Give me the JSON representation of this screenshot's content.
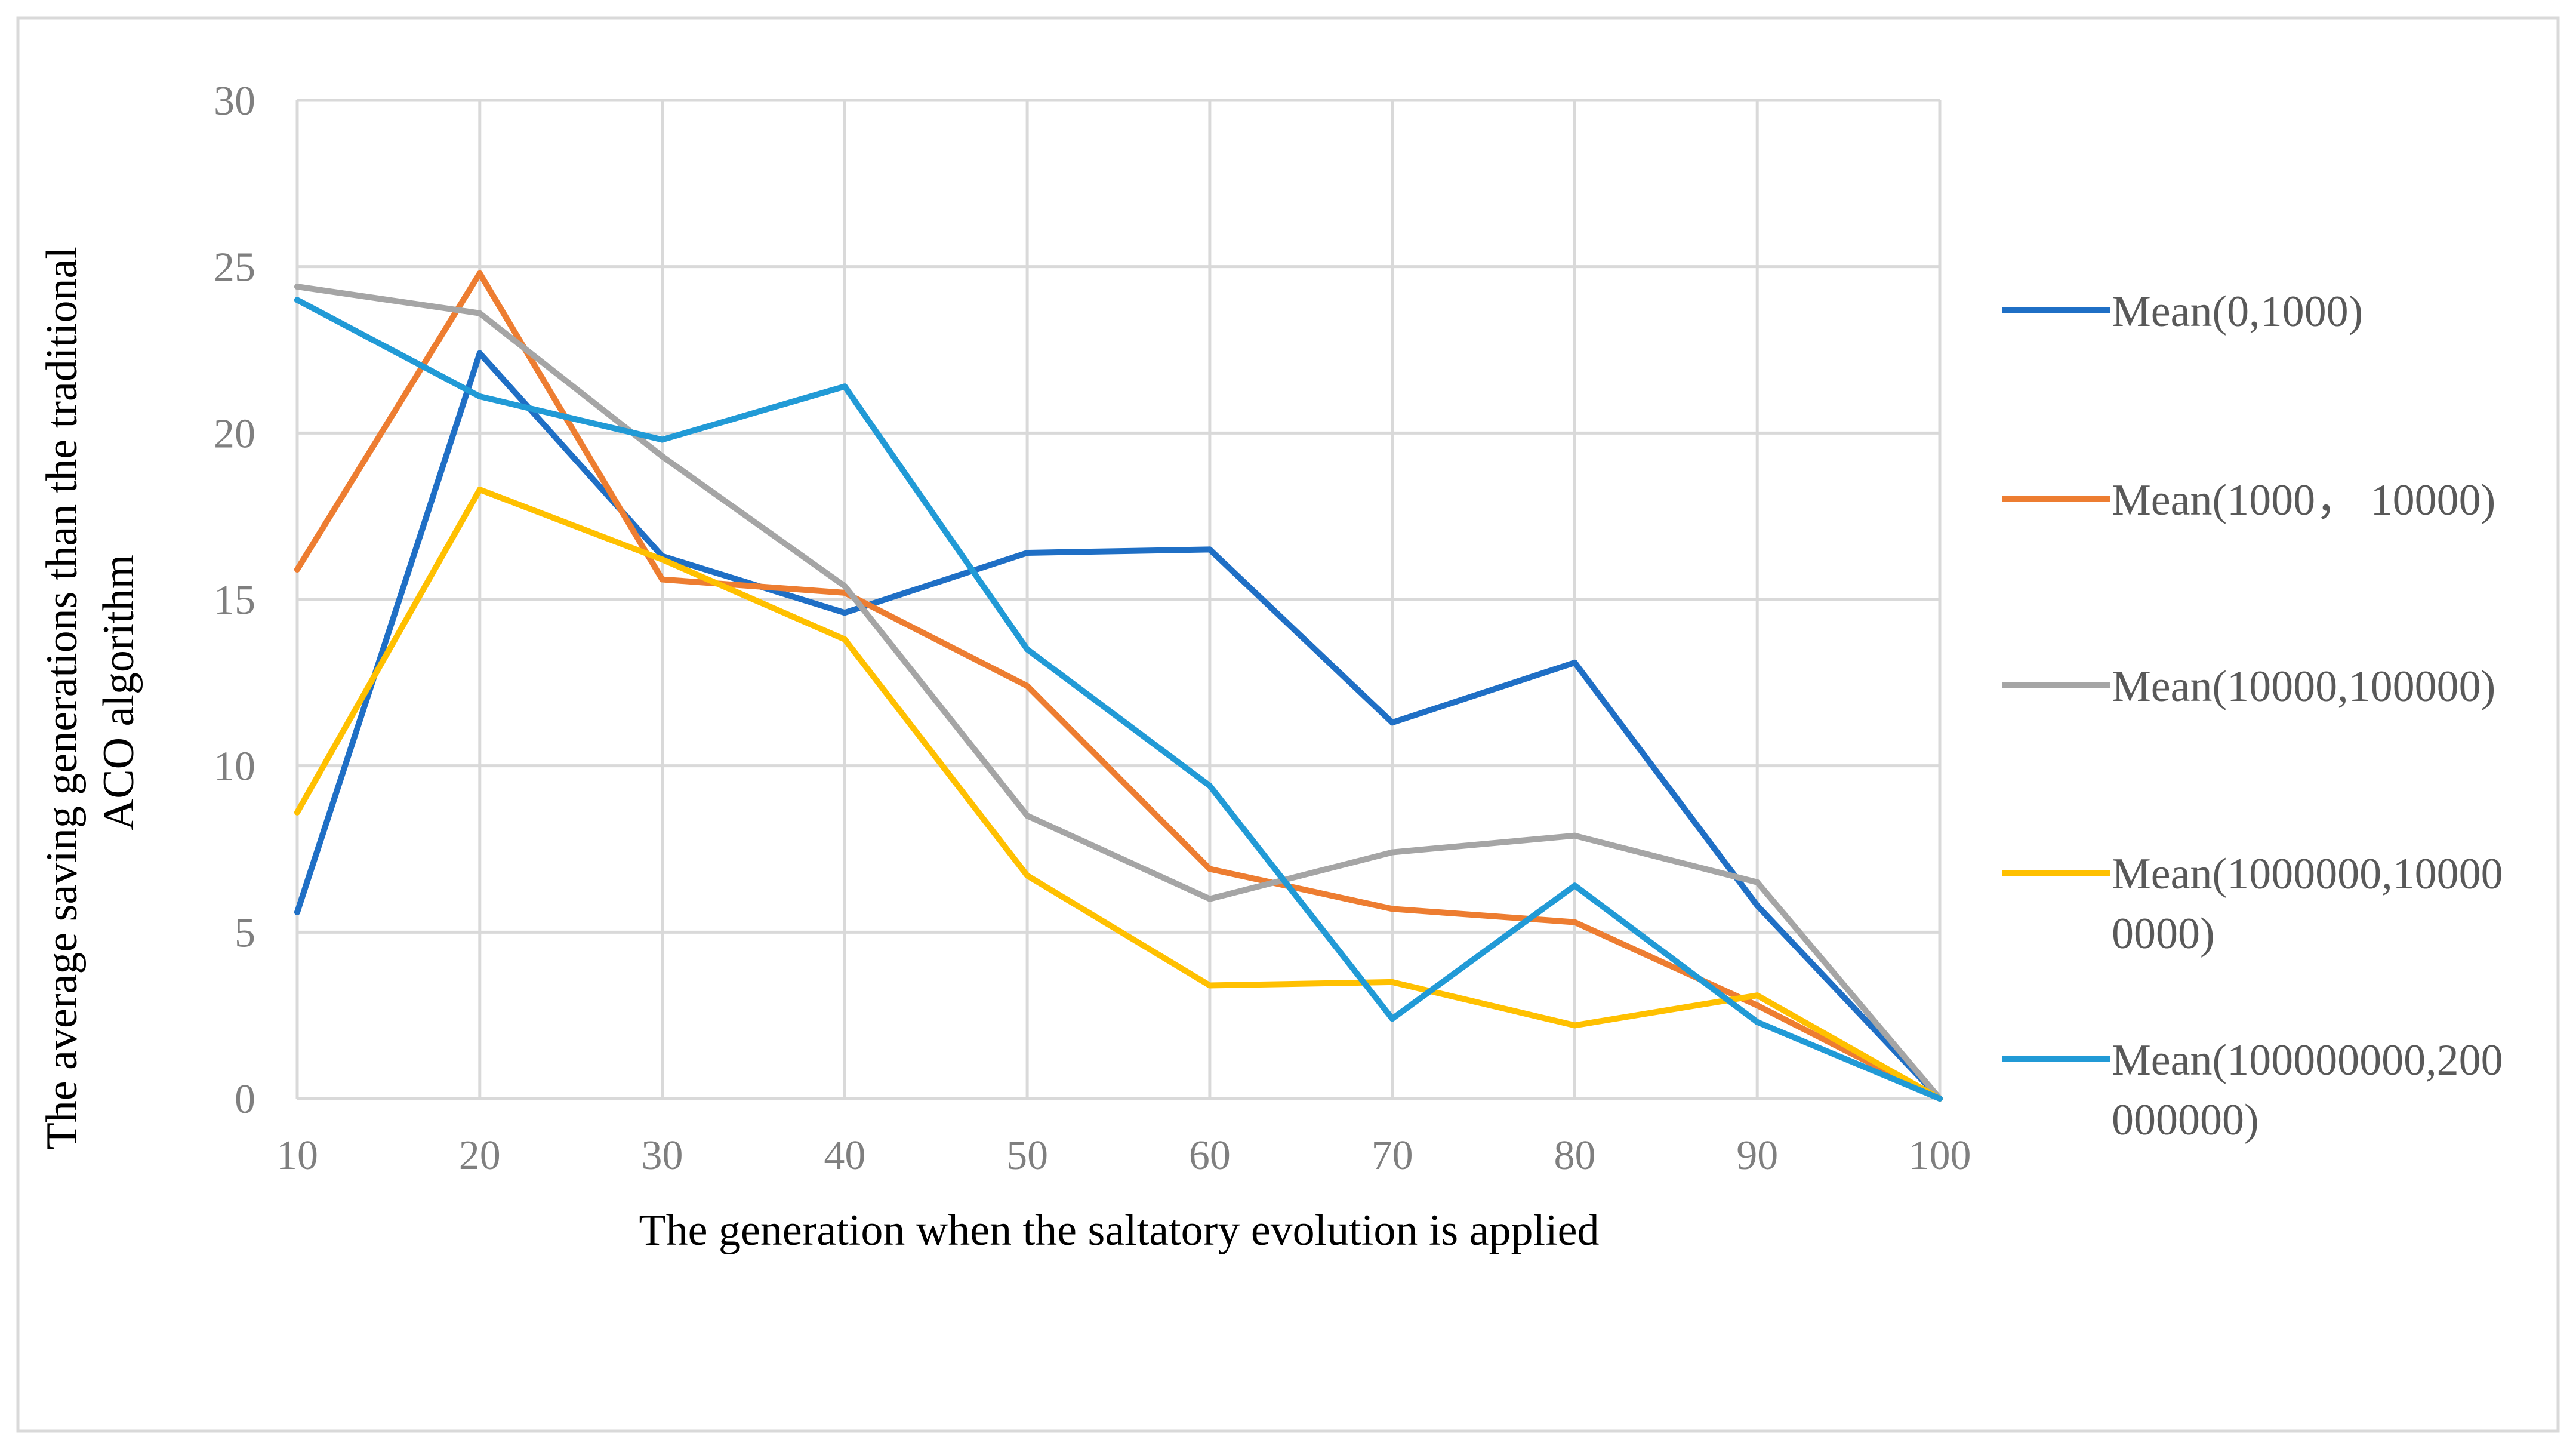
{
  "chart_data": {
    "type": "line",
    "title": "",
    "xlabel": "The generation when the saltatory evolution  is applied",
    "ylabel_lines": [
      "The average saving generations than the traditional",
      "ACO algorithm"
    ],
    "x": [
      10,
      20,
      30,
      40,
      50,
      60,
      70,
      80,
      90,
      100
    ],
    "x_tick_labels": [
      "10",
      "20",
      "30",
      "40",
      "50",
      "60",
      "70",
      "80",
      "90",
      "100"
    ],
    "y_tick_labels": [
      "0",
      "5",
      "10",
      "15",
      "20",
      "25",
      "30"
    ],
    "ylim": [
      0,
      30
    ],
    "y_ticks": [
      0,
      5,
      10,
      15,
      20,
      25,
      30
    ],
    "grid": true,
    "legend_position": "right",
    "series": [
      {
        "name": "Mean(0,1000)",
        "legend_lines": [
          "Mean(0,1000)"
        ],
        "color": "#1f6fc5",
        "values": [
          5.6,
          22.4,
          16.3,
          14.6,
          16.4,
          16.5,
          11.3,
          13.1,
          5.8,
          0
        ]
      },
      {
        "name": "Mean(1000， 10000)",
        "legend_lines": [
          "Mean(1000， 10000)"
        ],
        "color": "#ed7d31",
        "values": [
          15.9,
          24.8,
          15.6,
          15.2,
          12.4,
          6.9,
          5.7,
          5.3,
          2.8,
          0
        ]
      },
      {
        "name": "Mean(10000,100000)",
        "legend_lines": [
          "Mean(10000,100000)"
        ],
        "color": "#a5a5a5",
        "values": [
          24.4,
          23.6,
          19.3,
          15.4,
          8.5,
          6.0,
          7.4,
          7.9,
          6.5,
          0
        ]
      },
      {
        "name": "Mean(1000000,10000 0000)",
        "legend_lines": [
          "Mean(1000000,10000",
          "0000)"
        ],
        "color": "#ffc000",
        "values": [
          8.6,
          18.3,
          16.2,
          13.8,
          6.7,
          3.4,
          3.5,
          2.2,
          3.1,
          0
        ]
      },
      {
        "name": "Mean(100000000,200 000000)",
        "legend_lines": [
          "Mean(100000000,200",
          "000000)"
        ],
        "color": "#219ad6",
        "values": [
          24.0,
          21.1,
          19.8,
          21.4,
          13.5,
          9.4,
          2.4,
          6.4,
          2.3,
          0
        ]
      }
    ]
  },
  "style": {
    "grid_color": "#d9d9d9",
    "frame_color": "#d9d9d9"
  }
}
